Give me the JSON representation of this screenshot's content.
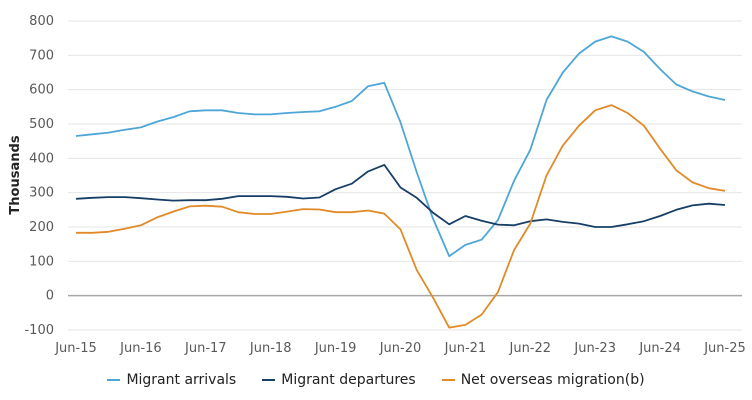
{
  "chart_data": {
    "type": "line",
    "title": "",
    "xlabel": "",
    "ylabel": "Thousands",
    "ylim": [
      -100,
      800
    ],
    "yticks": [
      800,
      700,
      600,
      500,
      400,
      300,
      200,
      100,
      0,
      -100
    ],
    "ytick_labels": [
      "800",
      "700",
      "600",
      "500",
      "400",
      "300",
      "200",
      "100",
      "0",
      "-100"
    ],
    "xtick_labels": [
      "Jun-15",
      "Jun-16",
      "Jun-17",
      "Jun-18",
      "Jun-19",
      "Jun-20",
      "Jun-21",
      "Jun-22",
      "Jun-23",
      "Jun-24",
      "Jun-25"
    ],
    "grid": true,
    "legend_position": "bottom",
    "x_unit": "quarter",
    "series": [
      {
        "name": "Migrant arrivals",
        "color": "#4ea6d8",
        "values": [
          465,
          470,
          475,
          483,
          490,
          507,
          520,
          537,
          540,
          540,
          532,
          528,
          528,
          532,
          535,
          537,
          550,
          567,
          610,
          620,
          505,
          360,
          225,
          115,
          148,
          163,
          220,
          335,
          425,
          570,
          650,
          705,
          740,
          755,
          740,
          710,
          660,
          615,
          595,
          580,
          570
        ]
      },
      {
        "name": "Migrant departures",
        "color": "#163e66",
        "values": [
          282,
          285,
          287,
          287,
          284,
          280,
          277,
          278,
          278,
          282,
          290,
          290,
          290,
          288,
          283,
          286,
          310,
          326,
          362,
          381,
          315,
          285,
          242,
          208,
          232,
          218,
          207,
          205,
          217,
          222,
          215,
          210,
          200,
          200,
          208,
          217,
          232,
          250,
          263,
          268,
          264
        ]
      },
      {
        "name": "Net overseas migration(b)",
        "color": "#e08a28",
        "values": [
          183,
          183,
          186,
          195,
          205,
          228,
          245,
          260,
          262,
          259,
          243,
          238,
          238,
          245,
          252,
          251,
          243,
          243,
          248,
          239,
          193,
          75,
          -5,
          -93,
          -85,
          -55,
          10,
          133,
          210,
          350,
          437,
          495,
          540,
          555,
          532,
          495,
          428,
          365,
          330,
          313,
          305
        ]
      }
    ]
  },
  "legend": {
    "items": [
      "Migrant arrivals",
      "Migrant departures",
      "Net overseas migration(b)"
    ]
  }
}
